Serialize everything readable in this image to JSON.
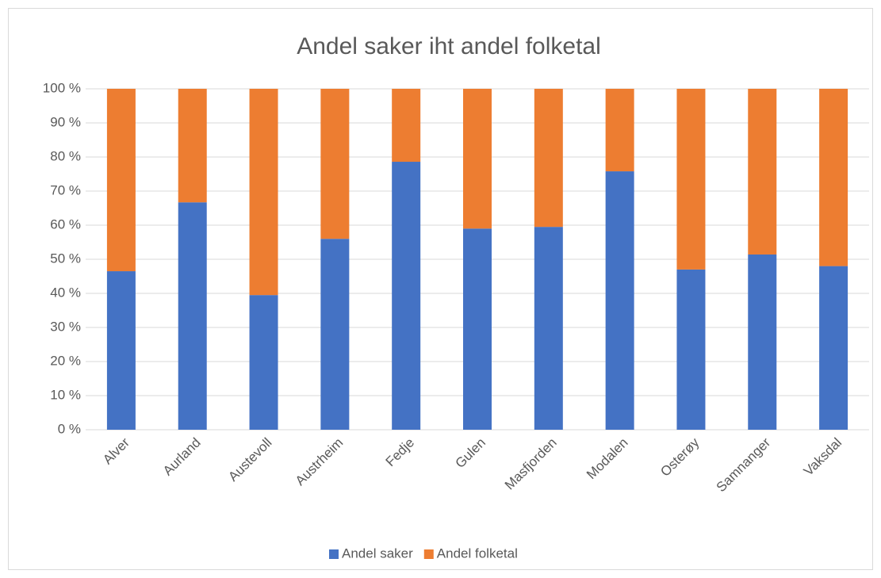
{
  "chart_data": {
    "type": "stacked_bar",
    "title": "Andel saker iht andel folketal",
    "categories": [
      "Alver",
      "Aurland",
      "Austevoll",
      "Austrheim",
      "Fedje",
      "Gulen",
      "Masfjorden",
      "Modalen",
      "Osterøy",
      "Samnanger",
      "Vaksdal"
    ],
    "series": [
      {
        "name": "Andel saker",
        "color": "#4472c4",
        "values": [
          46.5,
          66.7,
          39.5,
          56,
          78.6,
          59,
          59.5,
          75.8,
          47,
          51.4,
          48
        ]
      },
      {
        "name": "Andel folketal",
        "color": "#ed7d31",
        "values": [
          53.5,
          33.3,
          60.5,
          44,
          21.4,
          41,
          40.5,
          24.2,
          53,
          48.6,
          52
        ]
      }
    ],
    "ylim": [
      0,
      100
    ],
    "yticks": [
      {
        "value": 0,
        "label": "0 %"
      },
      {
        "value": 10,
        "label": "10 %"
      },
      {
        "value": 20,
        "label": "20 %"
      },
      {
        "value": 30,
        "label": "30 %"
      },
      {
        "value": 40,
        "label": "40 %"
      },
      {
        "value": 50,
        "label": "50 %"
      },
      {
        "value": 60,
        "label": "60 %"
      },
      {
        "value": 70,
        "label": "70 %"
      },
      {
        "value": 80,
        "label": "80 %"
      },
      {
        "value": 90,
        "label": "90 %"
      },
      {
        "value": 100,
        "label": "100 %"
      }
    ],
    "grid": true,
    "legend": "bottom"
  }
}
